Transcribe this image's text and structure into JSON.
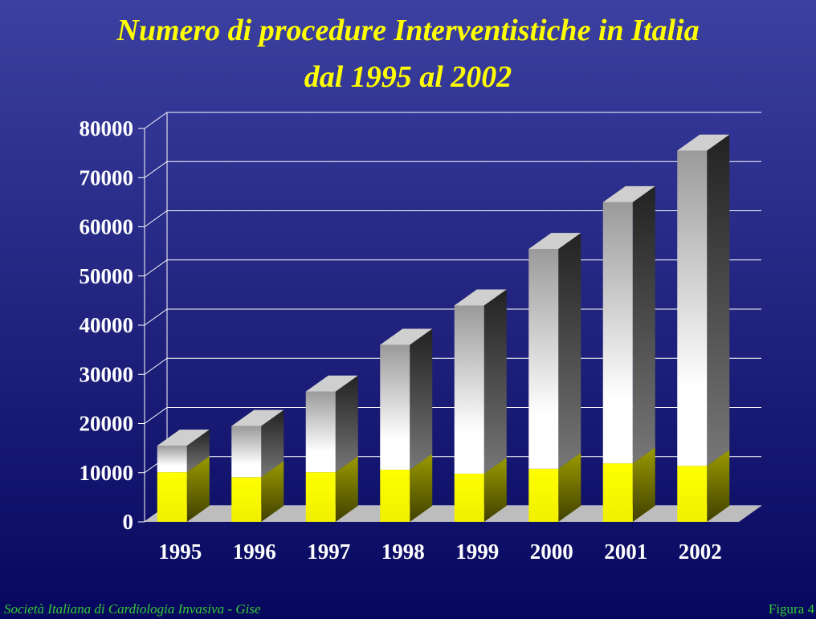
{
  "chart_data": {
    "type": "bar3d_stacked",
    "title": "Numero di procedure Interventistiche  in Italia",
    "subtitle": "dal 1995 al 2002",
    "categories": [
      "1995",
      "1996",
      "1997",
      "1998",
      "1999",
      "2000",
      "2001",
      "2002"
    ],
    "series": [
      {
        "color": "#ffff00",
        "values": [
          10100,
          9100,
          10100,
          10600,
          9800,
          10800,
          11900,
          11400
        ]
      },
      {
        "color": "#ffffff",
        "values": [
          5400,
          10400,
          16400,
          25400,
          34200,
          44700,
          53100,
          64100
        ]
      }
    ],
    "ylim": [
      0,
      80000
    ],
    "yticks": [
      0,
      10000,
      20000,
      30000,
      40000,
      50000,
      60000,
      70000,
      80000
    ],
    "grid": true,
    "footer_left": "Società Italiana di Cardiologia Invasiva - Gise",
    "footer_right": "Figura 4"
  }
}
